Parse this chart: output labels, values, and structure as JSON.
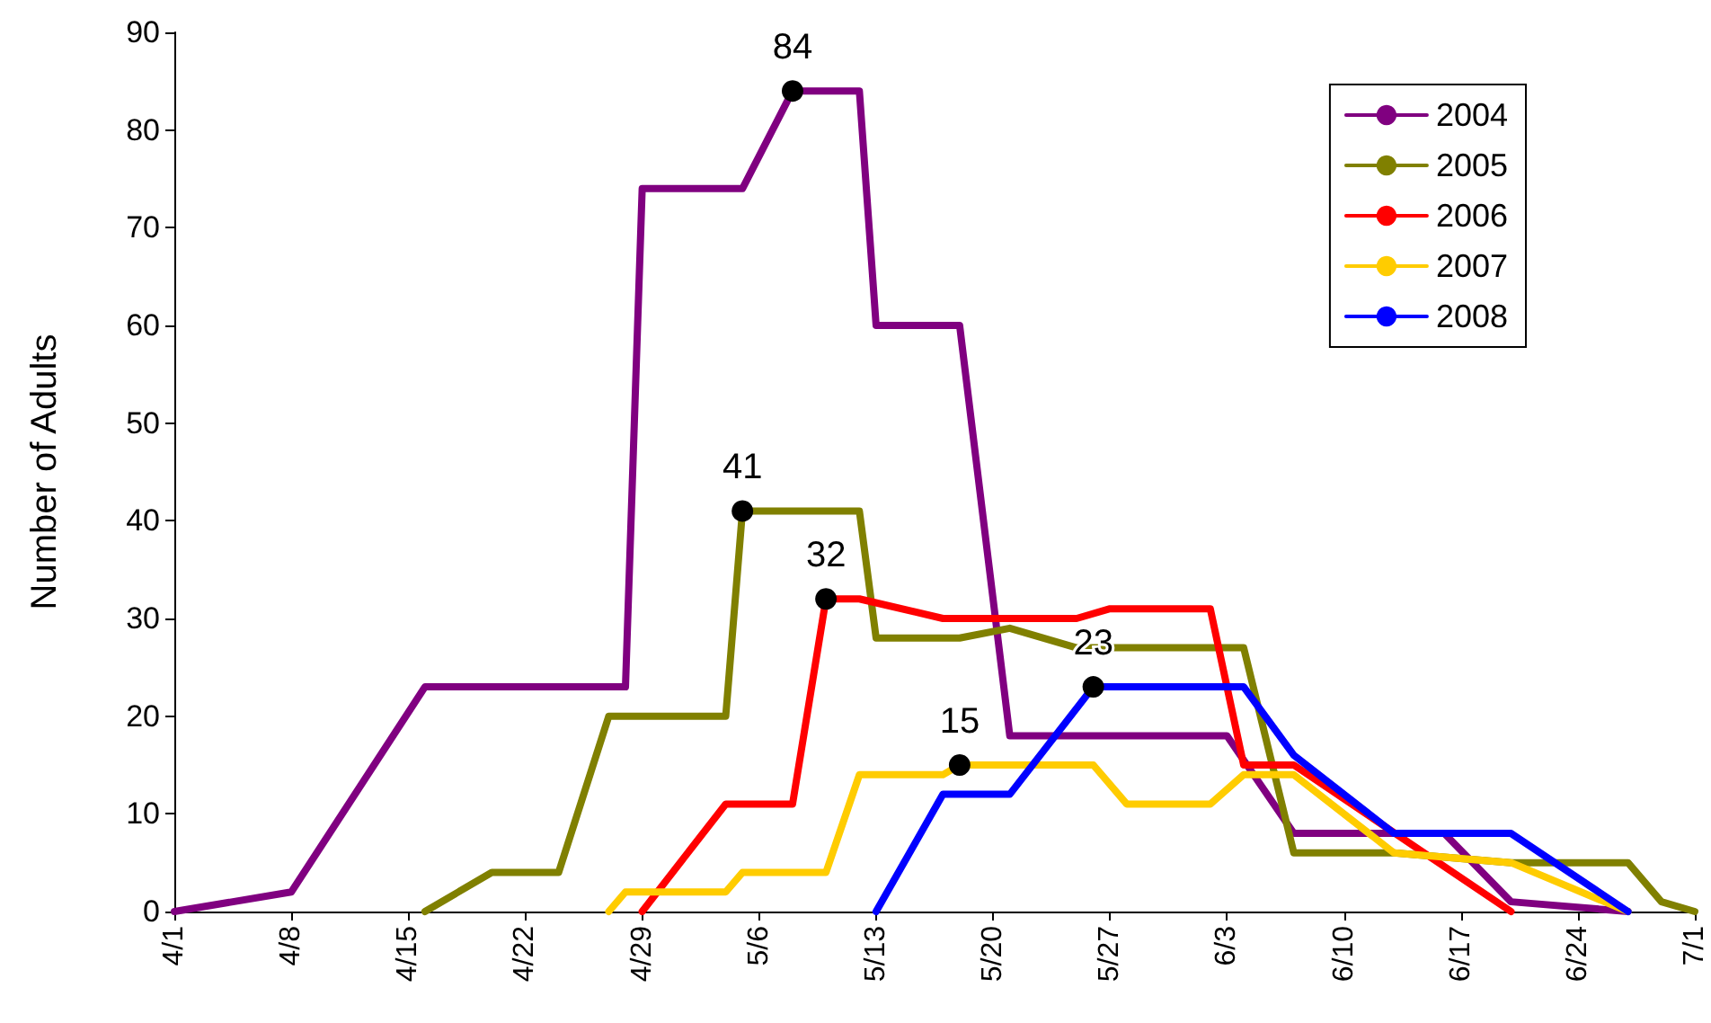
{
  "chart_data": {
    "type": "line",
    "ylabel": "Number of Adults",
    "xlim": [
      "--04-01",
      "--07-01"
    ],
    "xticks": [
      {
        "value": "--04-01",
        "label": "4/1"
      },
      {
        "value": "--04-08",
        "label": "4/8"
      },
      {
        "value": "--04-15",
        "label": "4/15"
      },
      {
        "value": "--04-22",
        "label": "4/22"
      },
      {
        "value": "--04-29",
        "label": "4/29"
      },
      {
        "value": "--05-06",
        "label": "5/6"
      },
      {
        "value": "--05-13",
        "label": "5/13"
      },
      {
        "value": "--05-20",
        "label": "5/20"
      },
      {
        "value": "--05-27",
        "label": "5/27"
      },
      {
        "value": "--06-03",
        "label": "6/3"
      },
      {
        "value": "--06-10",
        "label": "6/10"
      },
      {
        "value": "--06-17",
        "label": "6/17"
      },
      {
        "value": "--06-24",
        "label": "6/24"
      },
      {
        "value": "--07-01",
        "label": "7/1"
      }
    ],
    "ylim": [
      0,
      90
    ],
    "yticks": [
      0,
      10,
      20,
      30,
      40,
      50,
      60,
      70,
      80,
      90
    ],
    "grid": false,
    "legend": "top right",
    "line_style": "solid",
    "series": [
      {
        "name": "2004",
        "color": "#800080",
        "x": [
          "--04-01",
          "--04-08",
          "--04-16",
          "--04-28",
          "--04-29",
          "--05-05",
          "--05-08",
          "--05-12",
          "--05-13",
          "--05-18",
          "--05-21",
          "--06-03",
          "--06-07",
          "--06-16",
          "--06-20",
          "--06-27"
        ],
        "values": [
          0,
          2,
          23,
          23,
          74,
          74,
          84,
          84,
          60,
          60,
          18,
          18,
          8,
          8,
          1,
          0
        ],
        "value_labels": [
          null,
          null,
          null,
          null,
          null,
          null,
          "84",
          null,
          null,
          null,
          null,
          null,
          null,
          null,
          null,
          null
        ]
      },
      {
        "name": "2005",
        "color": "#808000",
        "x": [
          "--04-16",
          "--04-20",
          "--04-24",
          "--04-27",
          "--05-04",
          "--05-05",
          "--05-12",
          "--05-13",
          "--05-18",
          "--05-21",
          "--05-25",
          "--06-04",
          "--06-07",
          "--06-13",
          "--06-20",
          "--06-27",
          "--06-29",
          "--07-01"
        ],
        "values": [
          0,
          4,
          4,
          20,
          20,
          41,
          41,
          28,
          28,
          29,
          27,
          27,
          6,
          6,
          5,
          5,
          1,
          0
        ],
        "value_labels": [
          null,
          null,
          null,
          null,
          null,
          "41",
          null,
          null,
          null,
          null,
          null,
          null,
          null,
          null,
          null,
          null,
          null,
          null
        ]
      },
      {
        "name": "2006",
        "color": "#ff0000",
        "x": [
          "--04-29",
          "--05-04",
          "--05-08",
          "--05-10",
          "--05-12",
          "--05-17",
          "--05-25",
          "--05-27",
          "--06-02",
          "--06-04",
          "--06-07",
          "--06-20"
        ],
        "values": [
          0,
          11,
          11,
          32,
          32,
          30,
          30,
          31,
          31,
          15,
          15,
          0
        ],
        "value_labels": [
          null,
          null,
          null,
          "32",
          null,
          null,
          null,
          null,
          null,
          null,
          null,
          null
        ]
      },
      {
        "name": "2007",
        "color": "#ffcc00",
        "x": [
          "--04-27",
          "--04-28",
          "--05-04",
          "--05-05",
          "--05-10",
          "--05-12",
          "--05-17",
          "--05-18",
          "--05-26",
          "--05-28",
          "--06-02",
          "--06-04",
          "--06-07",
          "--06-13",
          "--06-20",
          "--06-27"
        ],
        "values": [
          0,
          2,
          2,
          4,
          4,
          14,
          14,
          15,
          15,
          11,
          11,
          14,
          14,
          6,
          5,
          0
        ],
        "value_labels": [
          null,
          null,
          null,
          null,
          null,
          null,
          null,
          "15",
          null,
          null,
          null,
          null,
          null,
          null,
          null,
          null
        ]
      },
      {
        "name": "2008",
        "color": "#0000ff",
        "x": [
          "--05-13",
          "--05-17",
          "--05-21",
          "--05-26",
          "--06-04",
          "--06-07",
          "--06-13",
          "--06-20",
          "--06-27"
        ],
        "values": [
          0,
          12,
          12,
          23,
          23,
          16,
          8,
          8,
          0
        ],
        "value_labels": [
          null,
          null,
          null,
          "23",
          null,
          null,
          null,
          null,
          null
        ]
      }
    ]
  }
}
